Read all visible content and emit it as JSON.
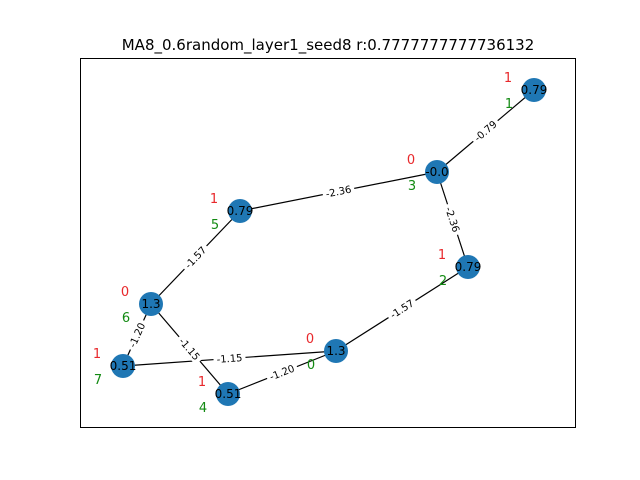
{
  "title": "MA8_0.6random_layer1_seed8  r:0.7777777777736132",
  "colors": {
    "node": "#1f77b4",
    "edge": "#000000",
    "top_tag": "#e8282b",
    "bottom_tag": "#128a12"
  },
  "nodes": [
    {
      "id": "n0",
      "label": "0.79",
      "top": "1",
      "bottom": "1"
    },
    {
      "id": "n1",
      "label": "-0.0",
      "top": "0",
      "bottom": "3"
    },
    {
      "id": "n2",
      "label": "0.79",
      "top": "1",
      "bottom": "5"
    },
    {
      "id": "n3",
      "label": "0.79",
      "top": "1",
      "bottom": "2"
    },
    {
      "id": "n4",
      "label": "1.3",
      "top": "0",
      "bottom": "6"
    },
    {
      "id": "n5",
      "label": "0.51",
      "top": "1",
      "bottom": "7"
    },
    {
      "id": "n6",
      "label": "1.3",
      "top": "0",
      "bottom": "0"
    },
    {
      "id": "n7",
      "label": "0.51",
      "top": "1",
      "bottom": "4"
    }
  ],
  "edges": [
    {
      "source": "n0",
      "target": "n1",
      "label": "-0.79"
    },
    {
      "source": "n1",
      "target": "n2",
      "label": "-2.36"
    },
    {
      "source": "n1",
      "target": "n3",
      "label": "-2.36"
    },
    {
      "source": "n2",
      "target": "n4",
      "label": "-1.57"
    },
    {
      "source": "n3",
      "target": "n6",
      "label": "-1.57"
    },
    {
      "source": "n4",
      "target": "n5",
      "label": "-1.20"
    },
    {
      "source": "n4",
      "target": "n7",
      "label": "-1.15"
    },
    {
      "source": "n5",
      "target": "n6",
      "label": "-1.15"
    },
    {
      "source": "n6",
      "target": "n7",
      "label": "-1.20"
    }
  ]
}
